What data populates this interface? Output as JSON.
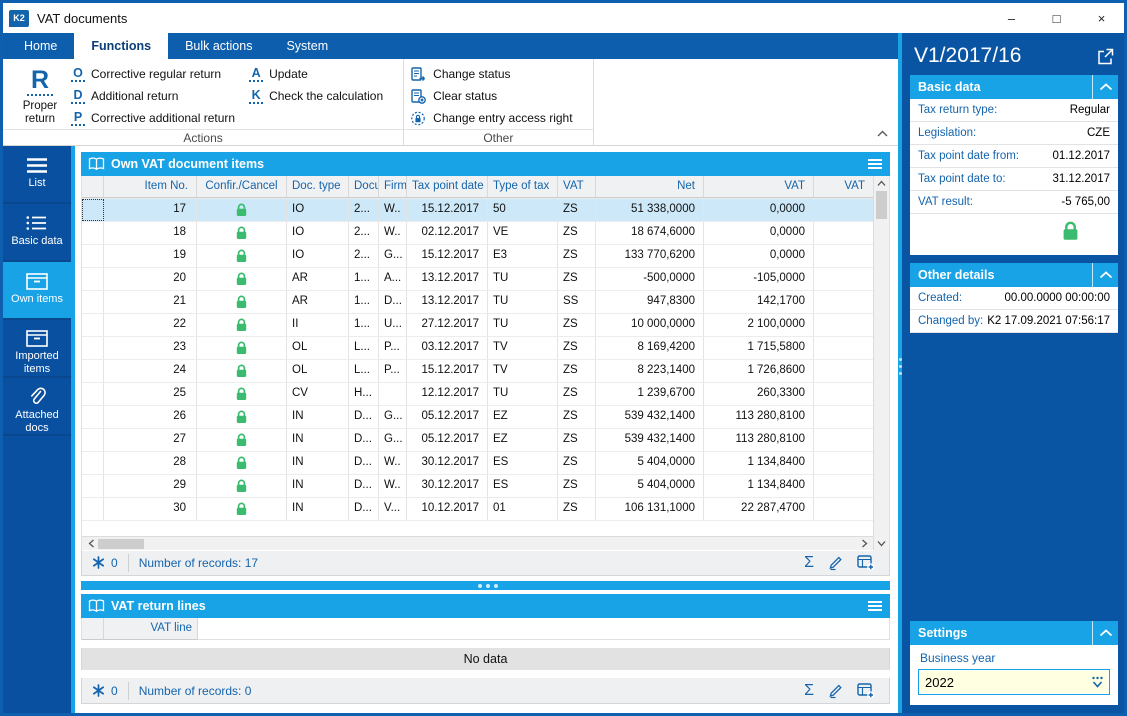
{
  "window": {
    "title": "VAT documents"
  },
  "icons": {
    "logo_text": "K2",
    "sum_icon": "Σ",
    "window_minimize": "–",
    "window_maximize": "□",
    "window_close": "×"
  },
  "ribbon": {
    "tabs": [
      {
        "label": "Home",
        "active": false
      },
      {
        "label": "Functions",
        "active": true
      },
      {
        "label": "Bulk actions",
        "active": false
      },
      {
        "label": "System",
        "active": false
      }
    ],
    "big_button": {
      "letter": "R",
      "label": "Proper return"
    },
    "groups": [
      {
        "label": "Actions",
        "letter_items": [
          {
            "letter": "O",
            "label": "Corrective regular return",
            "col": 1
          },
          {
            "letter": "D",
            "label": "Additional return",
            "col": 1
          },
          {
            "letter": "P",
            "label": "Corrective additional return",
            "col": 1
          },
          {
            "letter": "A",
            "label": "Update",
            "col": 2
          },
          {
            "letter": "K",
            "label": "Check the calculation",
            "col": 2
          }
        ]
      },
      {
        "label": "Other",
        "icon_items": [
          {
            "icon": "change-status-icon",
            "label": "Change status"
          },
          {
            "icon": "clear-status-icon",
            "label": "Clear status"
          },
          {
            "icon": "entry-access-icon",
            "label": "Change entry access right"
          }
        ]
      }
    ]
  },
  "sidebar": {
    "items": [
      {
        "id": "list",
        "icon": "menu-icon",
        "label": "List",
        "active": false
      },
      {
        "id": "basic-data",
        "icon": "list-icon",
        "label": "Basic data",
        "active": false
      },
      {
        "id": "own-items",
        "icon": "box-icon",
        "label": "Own items",
        "active": true
      },
      {
        "id": "imported-items",
        "icon": "box-icon",
        "label": "Imported items",
        "active": false
      },
      {
        "id": "attached-docs",
        "icon": "paperclip-icon",
        "label": "Attached docs",
        "active": false
      }
    ]
  },
  "own_items_panel": {
    "title": "Own VAT document items",
    "columns": [
      {
        "key": "sel",
        "label": "",
        "align": "left"
      },
      {
        "key": "item_no",
        "label": "Item No.",
        "align": "right"
      },
      {
        "key": "confir",
        "label": "Confir./Cancel",
        "align": "center"
      },
      {
        "key": "doc_type",
        "label": "Doc. type",
        "align": "left"
      },
      {
        "key": "doc",
        "label": "Docu",
        "align": "left"
      },
      {
        "key": "firm",
        "label": "Firm",
        "align": "left"
      },
      {
        "key": "tax_point_date",
        "label": "Tax point date",
        "align": "left",
        "cell_align": "right"
      },
      {
        "key": "type_of_tax",
        "label": "Type of tax",
        "align": "left"
      },
      {
        "key": "vat",
        "label": "VAT",
        "align": "left"
      },
      {
        "key": "net",
        "label": "Net",
        "align": "right"
      },
      {
        "key": "vat_amount",
        "label": "VAT",
        "align": "right"
      },
      {
        "key": "vat2",
        "label": "VAT",
        "align": "right"
      }
    ],
    "rows": [
      {
        "selected": true,
        "item_no": "17",
        "locked": true,
        "doc_type": "IO",
        "doc": "2...",
        "firm": "W..",
        "tax_point_date": "15.12.2017",
        "type_of_tax": "50",
        "vat": "ZS",
        "net": "51 338,0000",
        "vat_amount": "0,0000",
        "vat2": ""
      },
      {
        "selected": false,
        "item_no": "18",
        "locked": true,
        "doc_type": "IO",
        "doc": "2...",
        "firm": "W..",
        "tax_point_date": "02.12.2017",
        "type_of_tax": "VE",
        "vat": "ZS",
        "net": "18 674,6000",
        "vat_amount": "0,0000",
        "vat2": ""
      },
      {
        "selected": false,
        "item_no": "19",
        "locked": true,
        "doc_type": "IO",
        "doc": "2...",
        "firm": "G...",
        "tax_point_date": "15.12.2017",
        "type_of_tax": "E3",
        "vat": "ZS",
        "net": "133 770,6200",
        "vat_amount": "0,0000",
        "vat2": ""
      },
      {
        "selected": false,
        "item_no": "20",
        "locked": true,
        "doc_type": "AR",
        "doc": "1...",
        "firm": "A...",
        "tax_point_date": "13.12.2017",
        "type_of_tax": "TU",
        "vat": "ZS",
        "net": "-500,0000",
        "vat_amount": "-105,0000",
        "vat2": ""
      },
      {
        "selected": false,
        "item_no": "21",
        "locked": true,
        "doc_type": "AR",
        "doc": "1...",
        "firm": "D...",
        "tax_point_date": "13.12.2017",
        "type_of_tax": "TU",
        "vat": "SS",
        "net": "947,8300",
        "vat_amount": "142,1700",
        "vat2": ""
      },
      {
        "selected": false,
        "item_no": "22",
        "locked": true,
        "doc_type": "II",
        "doc": "1...",
        "firm": "U...",
        "tax_point_date": "27.12.2017",
        "type_of_tax": "TU",
        "vat": "ZS",
        "net": "10 000,0000",
        "vat_amount": "2 100,0000",
        "vat2": ""
      },
      {
        "selected": false,
        "item_no": "23",
        "locked": true,
        "doc_type": "OL",
        "doc": "L...",
        "firm": "P...",
        "tax_point_date": "03.12.2017",
        "type_of_tax": "TV",
        "vat": "ZS",
        "net": "8 169,4200",
        "vat_amount": "1 715,5800",
        "vat2": ""
      },
      {
        "selected": false,
        "item_no": "24",
        "locked": true,
        "doc_type": "OL",
        "doc": "L...",
        "firm": "P...",
        "tax_point_date": "15.12.2017",
        "type_of_tax": "TV",
        "vat": "ZS",
        "net": "8 223,1400",
        "vat_amount": "1 726,8600",
        "vat2": ""
      },
      {
        "selected": false,
        "item_no": "25",
        "locked": true,
        "doc_type": "CV",
        "doc": "H...",
        "firm": "",
        "tax_point_date": "12.12.2017",
        "type_of_tax": "TU",
        "vat": "ZS",
        "net": "1 239,6700",
        "vat_amount": "260,3300",
        "vat2": ""
      },
      {
        "selected": false,
        "item_no": "26",
        "locked": true,
        "doc_type": "IN",
        "doc": "D...",
        "firm": "G...",
        "tax_point_date": "05.12.2017",
        "type_of_tax": "EZ",
        "vat": "ZS",
        "net": "539 432,1400",
        "vat_amount": "113 280,8100",
        "vat2": ""
      },
      {
        "selected": false,
        "item_no": "27",
        "locked": true,
        "doc_type": "IN",
        "doc": "D...",
        "firm": "G...",
        "tax_point_date": "05.12.2017",
        "type_of_tax": "EZ",
        "vat": "ZS",
        "net": "539 432,1400",
        "vat_amount": "113 280,8100",
        "vat2": ""
      },
      {
        "selected": false,
        "item_no": "28",
        "locked": true,
        "doc_type": "IN",
        "doc": "D...",
        "firm": "W..",
        "tax_point_date": "30.12.2017",
        "type_of_tax": "ES",
        "vat": "ZS",
        "net": "5 404,0000",
        "vat_amount": "1 134,8400",
        "vat2": ""
      },
      {
        "selected": false,
        "item_no": "29",
        "locked": true,
        "doc_type": "IN",
        "doc": "D...",
        "firm": "W..",
        "tax_point_date": "30.12.2017",
        "type_of_tax": "ES",
        "vat": "ZS",
        "net": "5 404,0000",
        "vat_amount": "1 134,8400",
        "vat2": ""
      },
      {
        "selected": false,
        "item_no": "30",
        "locked": true,
        "doc_type": "IN",
        "doc": "D...",
        "firm": "V...",
        "tax_point_date": "10.12.2017",
        "type_of_tax": "01",
        "vat": "ZS",
        "net": "106 131,1000",
        "vat_amount": "22 287,4700",
        "vat2": ""
      }
    ],
    "footer": {
      "flag_count": "0",
      "records_label": "Number of records: 17"
    }
  },
  "vat_return_lines_panel": {
    "title": "VAT return lines",
    "column_label": "VAT line",
    "empty_text": "No data",
    "footer": {
      "flag_count": "0",
      "records_label": "Number of records: 0"
    }
  },
  "right_panel": {
    "title": "V1/2017/16",
    "sections": {
      "basic_data": {
        "title": "Basic data",
        "rows": [
          {
            "label": "Tax return type:",
            "value": "Regular"
          },
          {
            "label": "Legislation:",
            "value": "CZE"
          },
          {
            "label": "Tax point date from:",
            "value": "01.12.2017"
          },
          {
            "label": "Tax point date to:",
            "value": "31.12.2017"
          },
          {
            "label": "VAT result:",
            "value": "-5 765,00"
          }
        ]
      },
      "other_details": {
        "title": "Other details",
        "rows": [
          {
            "label": "Created:",
            "value": "00.00.0000 00:00:00"
          },
          {
            "label": "Changed by:",
            "value": "K2 17.09.2021 07:56:17"
          }
        ]
      },
      "settings": {
        "title": "Settings",
        "field_label": "Business year",
        "field_value": "2022"
      }
    }
  },
  "colors": {
    "accent_blue": "#1464ac",
    "ribbon_blue": "#0e5eae",
    "sidebar_blue": "#0a50a0",
    "panel_blue": "#0a55a3",
    "cyan": "#18a3e6",
    "lock_green": "#3bbb70",
    "selected_row": "#cde9f9",
    "input_yellow": "#ffffe1"
  }
}
